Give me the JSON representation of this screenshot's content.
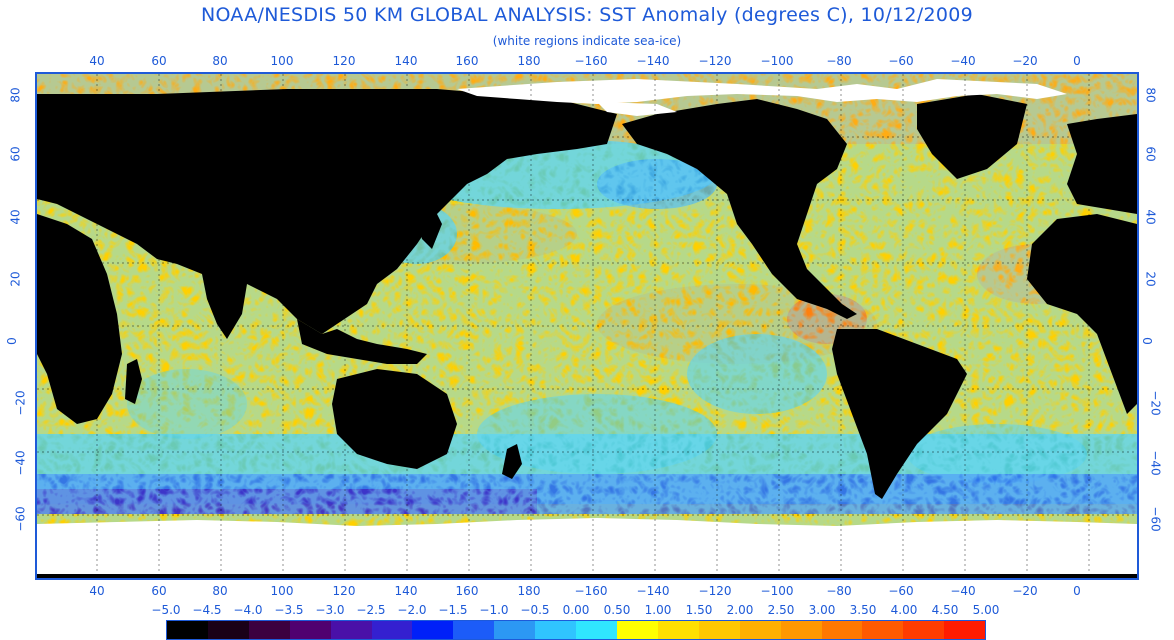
{
  "title": "NOAA/NESDIS 50 KM GLOBAL ANALYSIS: SST Anomaly (degrees C), 10/12/2009",
  "subtitle": "(white regions indicate sea-ice)",
  "longitude_labels": [
    "40",
    "60",
    "80",
    "100",
    "120",
    "140",
    "160",
    "180",
    "−160",
    "−140",
    "−120",
    "−100",
    "−80",
    "−60",
    "−40",
    "−20",
    "0"
  ],
  "latitude_labels_left": [
    "80",
    "60",
    "40",
    "20",
    "0",
    "−20",
    "−40",
    "−60"
  ],
  "latitude_labels_right": [
    "80",
    "60",
    "40",
    "20",
    "0",
    "−20",
    "−40",
    "−60"
  ],
  "colorbar": {
    "labels": [
      "−5.0",
      "−4.5",
      "−4.0",
      "−3.5",
      "−3.0",
      "−2.5",
      "−2.0",
      "−1.5",
      "−1.0",
      "−0.5",
      "0.00",
      "0.50",
      "1.00",
      "1.50",
      "2.00",
      "2.50",
      "3.00",
      "3.50",
      "4.00",
      "4.50",
      "5.00"
    ],
    "colors": [
      "#000000",
      "#1a0018",
      "#3c0040",
      "#500070",
      "#4a10a8",
      "#3420d0",
      "#0020f8",
      "#1c5cf8",
      "#2c98f4",
      "#30c4ff",
      "#30e6ff",
      "#ffff00",
      "#ffe000",
      "#ffc800",
      "#ffb000",
      "#ff9800",
      "#ff7800",
      "#ff5a00",
      "#ff3c00",
      "#ff1c00"
    ]
  },
  "colors": {
    "label_blue": "#1e5ad8",
    "ocean_warm": "#ffd000",
    "ocean_hot": "#ff8c1c",
    "ocean_cool": "#38c8f0",
    "ocean_cold": "#2860f0",
    "ocean_very_cold": "#4020c0",
    "land": "#000000",
    "sea_ice": "#ffffff"
  }
}
